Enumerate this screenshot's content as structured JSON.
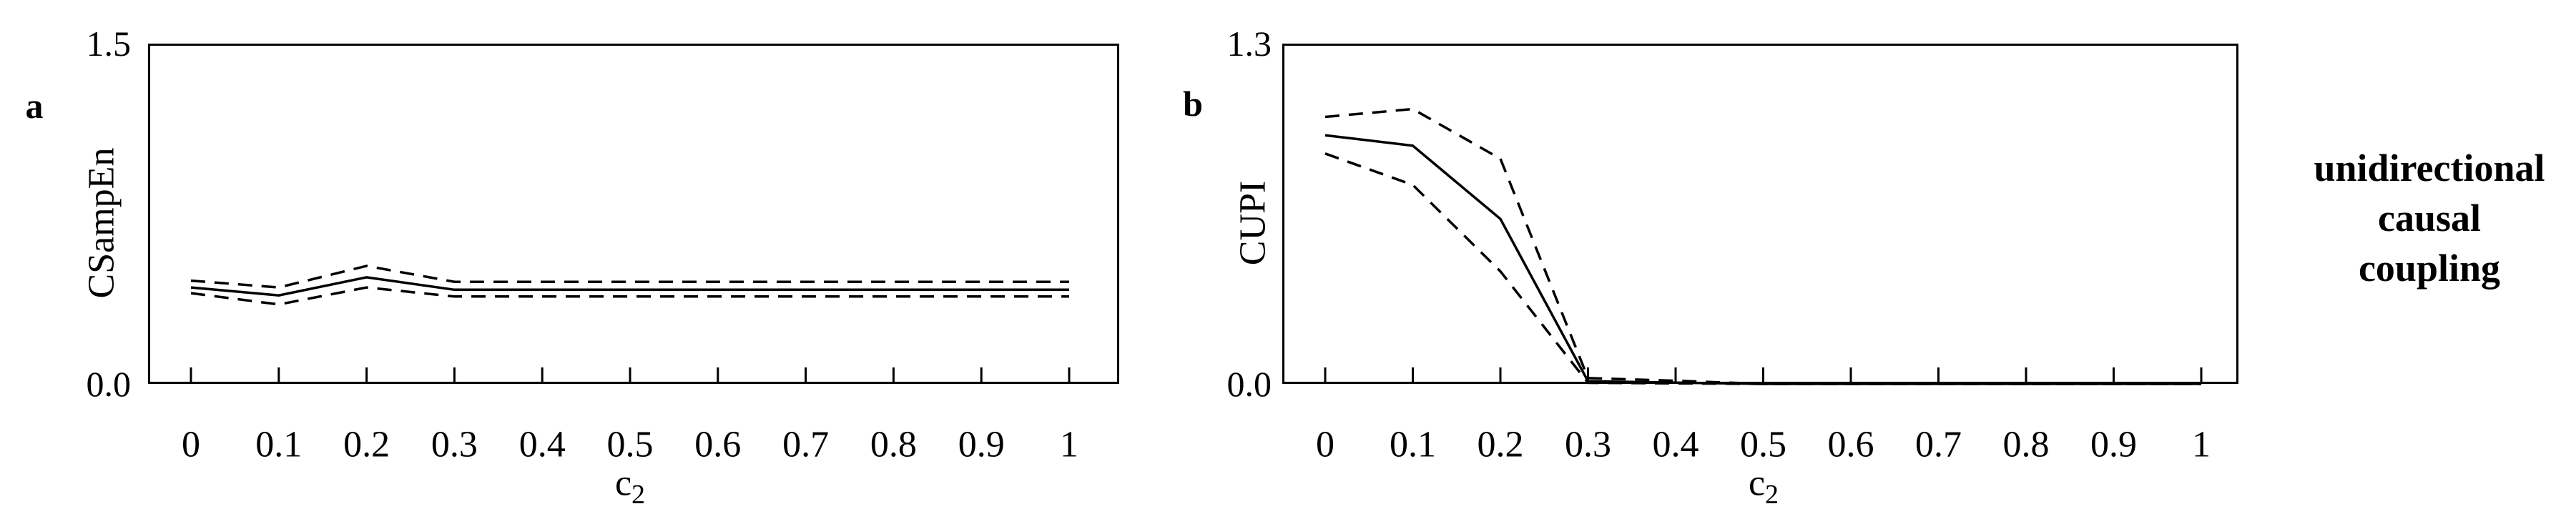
{
  "figure": {
    "background_color": "#ffffff",
    "line_color": "#000000",
    "caption": {
      "lines": [
        "unidirectional",
        "causal",
        "coupling"
      ]
    }
  },
  "panels": [
    {
      "letter": "a",
      "ylabel": "CSampEn",
      "y_top_label": "1.5",
      "y_bottom_label": "0.0",
      "xlabel_base": "c",
      "xlabel_sub": "2"
    },
    {
      "letter": "b",
      "ylabel": "CUPI",
      "y_top_label": "1.3",
      "y_bottom_label": "0.0",
      "xlabel_base": "c",
      "xlabel_sub": "2"
    }
  ],
  "chart_data": [
    {
      "type": "line",
      "panel_letter": "a",
      "title": "",
      "xlabel": "c2",
      "ylabel": "CSampEn",
      "x": [
        0,
        0.1,
        0.2,
        0.3,
        0.4,
        0.5,
        0.6,
        0.7,
        0.8,
        0.9,
        1.0
      ],
      "x_tick_labels": [
        "0",
        "0.1",
        "0.2",
        "0.3",
        "0.4",
        "0.5",
        "0.6",
        "0.7",
        "0.8",
        "0.9",
        "1"
      ],
      "xlim": [
        0,
        1
      ],
      "ylim": [
        0,
        1.5
      ],
      "y_axis_labels": [
        "0.0",
        "1.5"
      ],
      "grid": false,
      "legend": "none",
      "series": [
        {
          "name": "upper-bound",
          "style": "dashed",
          "values": [
            0.455,
            0.425,
            0.52,
            0.45,
            0.45,
            0.45,
            0.45,
            0.45,
            0.45,
            0.45,
            0.45
          ]
        },
        {
          "name": "mean",
          "style": "solid",
          "values": [
            0.425,
            0.39,
            0.47,
            0.415,
            0.415,
            0.415,
            0.415,
            0.415,
            0.415,
            0.415,
            0.415
          ]
        },
        {
          "name": "lower-bound",
          "style": "dashed",
          "values": [
            0.4,
            0.35,
            0.425,
            0.385,
            0.385,
            0.385,
            0.385,
            0.385,
            0.385,
            0.385,
            0.385
          ]
        }
      ],
      "layout": {
        "frame_left": 207,
        "frame_top": 61,
        "frame_width": 1358,
        "frame_height": 476,
        "pad_left": 60,
        "pad_right": 70,
        "tick_len": 20,
        "tick_label_y": 622
      }
    },
    {
      "type": "line",
      "panel_letter": "b",
      "title": "",
      "xlabel": "c2",
      "ylabel": "CUPI",
      "x": [
        0,
        0.1,
        0.2,
        0.3,
        0.4,
        0.5,
        0.6,
        0.7,
        0.8,
        0.9,
        1.0
      ],
      "x_tick_labels": [
        "0",
        "0.1",
        "0.2",
        "0.3",
        "0.4",
        "0.5",
        "0.6",
        "0.7",
        "0.8",
        "0.9",
        "1"
      ],
      "xlim": [
        0,
        1
      ],
      "ylim": [
        0,
        1.3
      ],
      "y_axis_labels": [
        "0.0",
        "1.3"
      ],
      "grid": false,
      "legend": "none",
      "series": [
        {
          "name": "upper-bound",
          "style": "dashed",
          "values": [
            1.02,
            1.05,
            0.86,
            0.022,
            0.012,
            0,
            0,
            0,
            0,
            0,
            0
          ]
        },
        {
          "name": "mean",
          "style": "solid",
          "values": [
            0.95,
            0.91,
            0.63,
            0.01,
            0.005,
            0,
            0,
            0,
            0,
            0,
            0
          ]
        },
        {
          "name": "lower-bound",
          "style": "dashed",
          "values": [
            0.88,
            0.76,
            0.43,
            0.004,
            0.002,
            0,
            0,
            0,
            0,
            0,
            0
          ]
        }
      ],
      "layout": {
        "frame_left": 1793,
        "frame_top": 61,
        "frame_width": 1337,
        "frame_height": 476,
        "pad_left": 60,
        "pad_right": 52,
        "tick_len": 20,
        "tick_label_y": 622
      }
    }
  ]
}
